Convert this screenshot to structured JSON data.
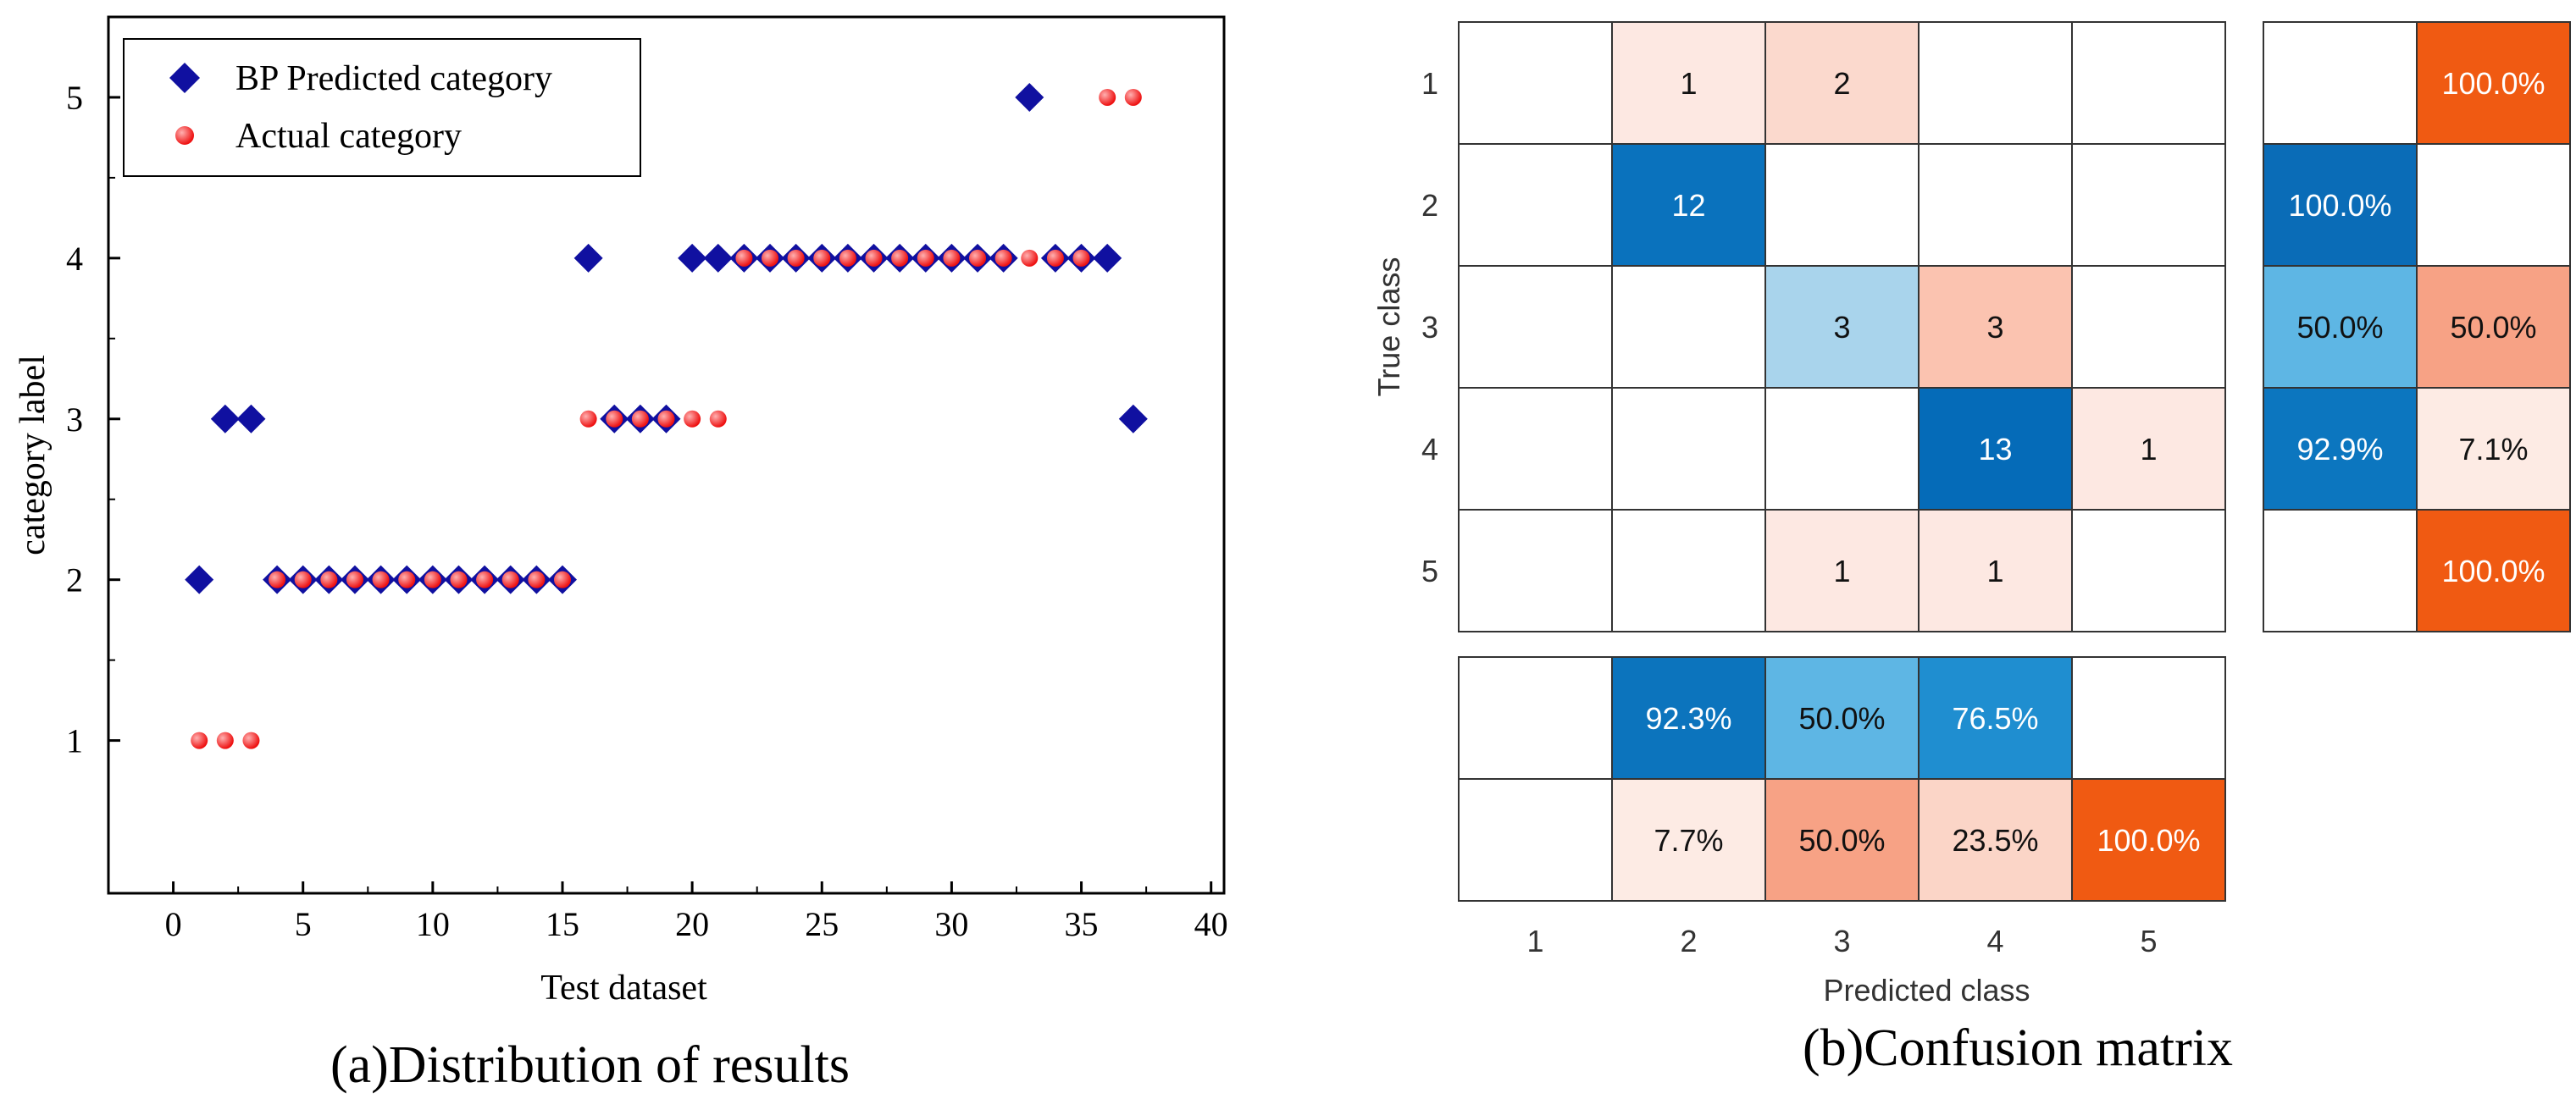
{
  "colors": {
    "bp_marker": "#1010a0",
    "actual_marker": "#ee1111",
    "actual_marker_highlight": "#ffb0b0",
    "axis": "#000000",
    "cm_text_dark": "#111111",
    "cm_text_light": "#ffffff",
    "cm_grid": "#333333"
  },
  "chart_data": [
    {
      "type": "scatter",
      "xlabel": "Test dataset",
      "ylabel": "category label",
      "caption": "(a)Distribution of results",
      "xlim": [
        -2.5,
        40.5
      ],
      "ylim": [
        0.05,
        5.5
      ],
      "x_ticks": [
        0,
        5,
        10,
        15,
        20,
        25,
        30,
        35,
        40
      ],
      "y_ticks": [
        1,
        2,
        3,
        4,
        5
      ],
      "legend_position": "top-left",
      "series": [
        {
          "name": "BP Predicted category",
          "marker": "diamond",
          "color": "#1010a0",
          "x": [
            1,
            2,
            3,
            4,
            5,
            6,
            7,
            8,
            9,
            10,
            11,
            12,
            13,
            14,
            15,
            16,
            17,
            18,
            19,
            20,
            21,
            22,
            23,
            24,
            25,
            26,
            27,
            28,
            29,
            30,
            31,
            32,
            33,
            34,
            35,
            36,
            37
          ],
          "y": [
            2,
            3,
            3,
            2,
            2,
            2,
            2,
            2,
            2,
            2,
            2,
            2,
            2,
            2,
            2,
            4,
            3,
            3,
            3,
            4,
            4,
            4,
            4,
            4,
            4,
            4,
            4,
            4,
            4,
            4,
            4,
            4,
            5,
            4,
            4,
            4,
            3
          ]
        },
        {
          "name": "Actual category",
          "marker": "circle",
          "color": "#ee1111",
          "x": [
            1,
            2,
            3,
            4,
            5,
            6,
            7,
            8,
            9,
            10,
            11,
            12,
            13,
            14,
            15,
            16,
            17,
            18,
            19,
            20,
            21,
            22,
            23,
            24,
            25,
            26,
            27,
            28,
            29,
            30,
            31,
            32,
            33,
            34,
            35,
            36,
            37
          ],
          "y": [
            1,
            1,
            1,
            2,
            2,
            2,
            2,
            2,
            2,
            2,
            2,
            2,
            2,
            2,
            2,
            3,
            3,
            3,
            3,
            3,
            3,
            4,
            4,
            4,
            4,
            4,
            4,
            4,
            4,
            4,
            4,
            4,
            4,
            4,
            4,
            5,
            5
          ]
        }
      ]
    },
    {
      "type": "heatmap",
      "subtype": "confusion_matrix",
      "caption": "(b)Confusion matrix",
      "xlabel": "Predicted class",
      "ylabel": "True class",
      "row_labels": [
        "1",
        "2",
        "3",
        "4",
        "5"
      ],
      "col_labels": [
        "1",
        "2",
        "3",
        "4",
        "5"
      ],
      "main": [
        [
          "",
          "1",
          "2",
          "",
          ""
        ],
        [
          "",
          "12",
          "",
          "",
          ""
        ],
        [
          "",
          "",
          "3",
          "3",
          ""
        ],
        [
          "",
          "",
          "",
          "13",
          "1"
        ],
        [
          "",
          "",
          "1",
          "1",
          ""
        ]
      ],
      "main_fill": [
        [
          "#ffffff",
          "#fde8e2",
          "#fbd9cd",
          "#ffffff",
          "#ffffff"
        ],
        [
          "#ffffff",
          "#0a72bd",
          "#ffffff",
          "#ffffff",
          "#ffffff"
        ],
        [
          "#ffffff",
          "#ffffff",
          "#a9d4ec",
          "#fbc3b0",
          "#ffffff"
        ],
        [
          "#ffffff",
          "#ffffff",
          "#ffffff",
          "#056bb8",
          "#fde8e2"
        ],
        [
          "#ffffff",
          "#ffffff",
          "#fde8e2",
          "#fde8e2",
          "#ffffff"
        ]
      ],
      "main_text_color": [
        [
          "#111111",
          "#111111",
          "#111111",
          "#111111",
          "#111111"
        ],
        [
          "#111111",
          "#ffffff",
          "#111111",
          "#111111",
          "#111111"
        ],
        [
          "#111111",
          "#111111",
          "#111111",
          "#111111",
          "#111111"
        ],
        [
          "#111111",
          "#111111",
          "#111111",
          "#ffffff",
          "#111111"
        ],
        [
          "#111111",
          "#111111",
          "#111111",
          "#111111",
          "#111111"
        ]
      ],
      "row_summary": [
        [
          "",
          "100.0%"
        ],
        [
          "100.0%",
          ""
        ],
        [
          "50.0%",
          "50.0%"
        ],
        [
          "92.9%",
          "7.1%"
        ],
        [
          "",
          "100.0%"
        ]
      ],
      "row_summary_fill": [
        [
          "#ffffff",
          "#f05a12"
        ],
        [
          "#0a6cb7",
          "#ffffff"
        ],
        [
          "#5eb6e4",
          "#f7a285"
        ],
        [
          "#0c76bf",
          "#fdebe4"
        ],
        [
          "#ffffff",
          "#f05a12"
        ]
      ],
      "row_summary_text_color": [
        [
          "#111111",
          "#ffffff"
        ],
        [
          "#ffffff",
          "#111111"
        ],
        [
          "#111111",
          "#111111"
        ],
        [
          "#ffffff",
          "#111111"
        ],
        [
          "#111111",
          "#ffffff"
        ]
      ],
      "col_summary": [
        [
          "",
          "92.3%",
          "50.0%",
          "76.5%",
          ""
        ],
        [
          "",
          "7.7%",
          "50.0%",
          "23.5%",
          "100.0%"
        ]
      ],
      "col_summary_fill": [
        [
          "#ffffff",
          "#0c74bd",
          "#5eb6e4",
          "#1f8ed0",
          "#ffffff"
        ],
        [
          "#ffffff",
          "#fdebe4",
          "#f7a285",
          "#fbd5c7",
          "#f05a12"
        ]
      ],
      "col_summary_text_color": [
        [
          "#111111",
          "#ffffff",
          "#111111",
          "#ffffff",
          "#111111"
        ],
        [
          "#111111",
          "#111111",
          "#111111",
          "#111111",
          "#ffffff"
        ]
      ]
    }
  ]
}
